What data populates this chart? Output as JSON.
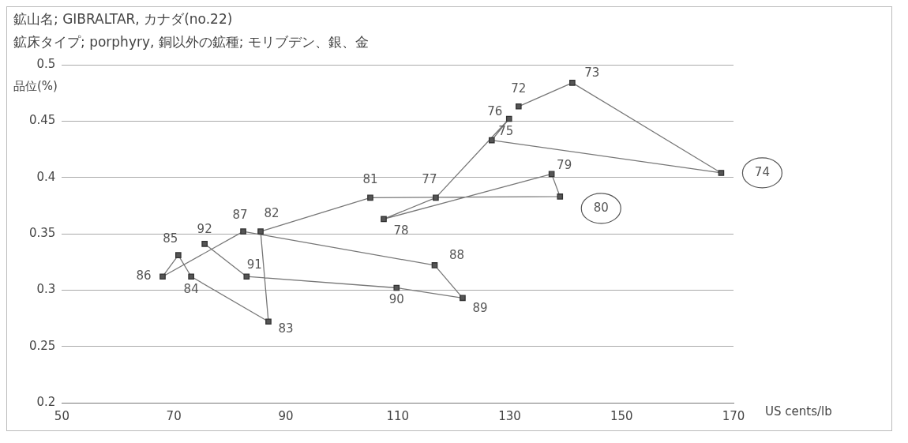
{
  "chart_data": {
    "type": "line",
    "title": "鉱山名; GIBRALTAR, カナダ(no.22)",
    "subtitle": "鉱床タイプ; porphyry, 銅以外の鉱種; モリブデン、銀、金",
    "xlabel": "US cents/lb",
    "ylabel": "品位(%)",
    "x": [
      131.6,
      141.2,
      167.8,
      126.8,
      129.9,
      116.8,
      107.5,
      137.5,
      139.0,
      105.1,
      85.5,
      86.9,
      73.1,
      70.8,
      68.0,
      82.4,
      116.6,
      121.6,
      109.8,
      83.0,
      75.5
    ],
    "series": [
      {
        "color": "#555555",
        "values": [
          0.463,
          0.484,
          0.404,
          0.433,
          0.452,
          0.382,
          0.363,
          0.403,
          0.383,
          0.382,
          0.352,
          0.272,
          0.312,
          0.331,
          0.312,
          0.352,
          0.322,
          0.293,
          0.302,
          0.312,
          0.341
        ]
      }
    ],
    "xlim": [
      50,
      170
    ],
    "xticks": [
      50,
      70,
      90,
      110,
      130,
      150,
      170
    ],
    "ylim": [
      0.2,
      0.5
    ],
    "yticks": [
      0.2,
      0.25,
      0.3,
      0.35,
      0.4,
      0.45,
      0.5
    ],
    "grid": "y",
    "legend": false,
    "marker": "square",
    "line_style": "solid",
    "annotations": [
      {
        "text": "72",
        "x": 131.6,
        "y": 0.463
      },
      {
        "text": "73",
        "x": 141.2,
        "y": 0.484
      },
      {
        "text": "74",
        "x": 167.8,
        "y": 0.404
      },
      {
        "text": "75",
        "x": 126.8,
        "y": 0.433
      },
      {
        "text": "76",
        "x": 129.9,
        "y": 0.452
      },
      {
        "text": "77",
        "x": 116.8,
        "y": 0.382
      },
      {
        "text": "78",
        "x": 107.5,
        "y": 0.363
      },
      {
        "text": "79",
        "x": 137.5,
        "y": 0.403
      },
      {
        "text": "80",
        "x": 139.0,
        "y": 0.383
      },
      {
        "text": "81",
        "x": 105.1,
        "y": 0.382
      },
      {
        "text": "82",
        "x": 85.5,
        "y": 0.352
      },
      {
        "text": "83",
        "x": 86.9,
        "y": 0.272
      },
      {
        "text": "84",
        "x": 73.1,
        "y": 0.312
      },
      {
        "text": "85",
        "x": 70.8,
        "y": 0.331
      },
      {
        "text": "86",
        "x": 68.0,
        "y": 0.312
      },
      {
        "text": "87",
        "x": 82.4,
        "y": 0.352
      },
      {
        "text": "88",
        "x": 116.6,
        "y": 0.322
      },
      {
        "text": "89",
        "x": 121.6,
        "y": 0.293
      },
      {
        "text": "90",
        "x": 109.8,
        "y": 0.302
      },
      {
        "text": "91",
        "x": 83.0,
        "y": 0.312
      },
      {
        "text": "92",
        "x": 75.5,
        "y": 0.341
      }
    ]
  }
}
